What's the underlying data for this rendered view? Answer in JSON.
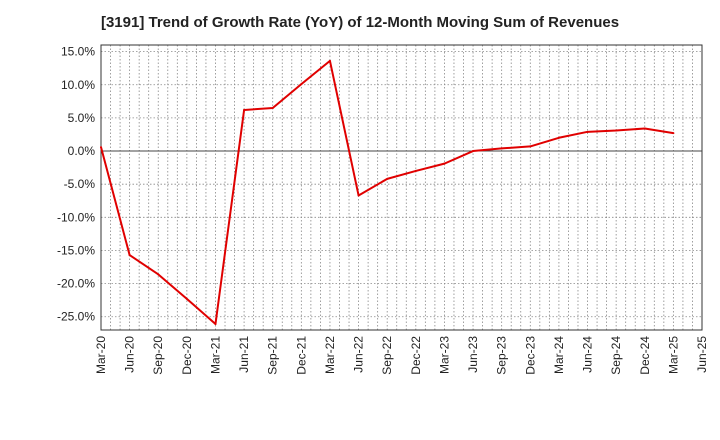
{
  "chart_data": {
    "type": "line",
    "title": "[3191]  Trend of Growth Rate (YoY) of 12-Month Moving Sum of Revenues",
    "xlabel": "",
    "ylabel": "",
    "ylim": [
      -27,
      16
    ],
    "yticks": [
      "15.0%",
      "10.0%",
      "5.0%",
      "0.0%",
      "-5.0%",
      "-10.0%",
      "-15.0%",
      "-20.0%",
      "-25.0%"
    ],
    "ytick_values": [
      15,
      10,
      5,
      0,
      -5,
      -10,
      -15,
      -20,
      -25
    ],
    "xticks": [
      "Mar-20",
      "Jun-20",
      "Sep-20",
      "Dec-20",
      "Mar-21",
      "Jun-21",
      "Sep-21",
      "Dec-21",
      "Mar-22",
      "Jun-22",
      "Sep-22",
      "Dec-22",
      "Mar-23",
      "Jun-23",
      "Sep-23",
      "Dec-23",
      "Mar-24",
      "Jun-24",
      "Sep-24",
      "Dec-24",
      "Mar-25",
      "Jun-25"
    ],
    "grid": true,
    "line_color": "#e00000",
    "series": [
      {
        "values": [
          0.6,
          -15.7,
          -18.6,
          -22.3,
          -26.1,
          6.2,
          6.5,
          10.1,
          13.6,
          -6.7,
          -4.2,
          -3.0,
          -1.9,
          0.0,
          0.4,
          0.7,
          2.0,
          2.9,
          3.1,
          3.4,
          2.7
        ]
      }
    ]
  }
}
